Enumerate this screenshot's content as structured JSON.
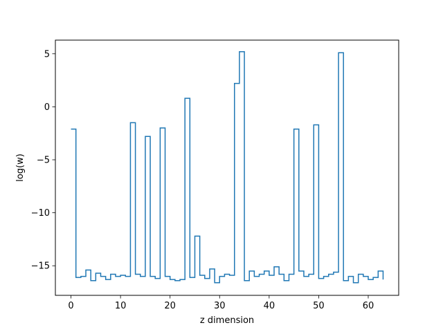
{
  "chart_data": {
    "type": "line",
    "drawstyle": "steps-post",
    "xlabel": "z dimension",
    "ylabel": "log(w)",
    "xlim": [
      -3.15,
      66.15
    ],
    "ylim": [
      -17.79,
      6.29
    ],
    "xticks": [
      0,
      10,
      20,
      30,
      40,
      50,
      60
    ],
    "yticks": [
      5,
      0,
      -5,
      -10,
      -15
    ],
    "ytick_labels": [
      "5",
      "0",
      "−5",
      "−10",
      "−15"
    ],
    "grid": false,
    "legend": "none",
    "line_color": "#1f77b4",
    "series": [
      {
        "x": [
          0,
          1,
          2,
          3,
          4,
          5,
          6,
          7,
          8,
          9,
          10,
          11,
          12,
          13,
          14,
          15,
          16,
          17,
          18,
          19,
          20,
          21,
          22,
          23,
          24,
          25,
          26,
          27,
          28,
          29,
          30,
          31,
          32,
          33,
          34,
          35,
          36,
          37,
          38,
          39,
          40,
          41,
          42,
          43,
          44,
          45,
          46,
          47,
          48,
          49,
          50,
          51,
          52,
          53,
          54,
          55,
          56,
          57,
          58,
          59,
          60,
          61,
          62,
          63
        ],
        "values": [
          -2.1,
          -16.1,
          -16.0,
          -15.4,
          -16.4,
          -15.7,
          -16.0,
          -16.3,
          -15.8,
          -16.0,
          -15.9,
          -16.0,
          -1.5,
          -15.8,
          -16.0,
          -2.8,
          -16.0,
          -16.2,
          -2.0,
          -16.0,
          -16.3,
          -16.4,
          -16.3,
          0.8,
          -16.1,
          -12.2,
          -15.9,
          -16.2,
          -15.3,
          -16.6,
          -16.0,
          -15.8,
          -15.9,
          2.2,
          5.2,
          -16.4,
          -15.5,
          -16.0,
          -15.8,
          -15.5,
          -15.9,
          -15.1,
          -15.8,
          -16.4,
          -15.8,
          -2.1,
          -15.5,
          -16.0,
          -15.8,
          -1.7,
          -16.2,
          -16.0,
          -15.8,
          -15.6,
          5.1,
          -16.4,
          -16.0,
          -16.6,
          -15.8,
          -16.0,
          -16.3,
          -16.1,
          -15.5,
          -16.3
        ]
      }
    ]
  }
}
